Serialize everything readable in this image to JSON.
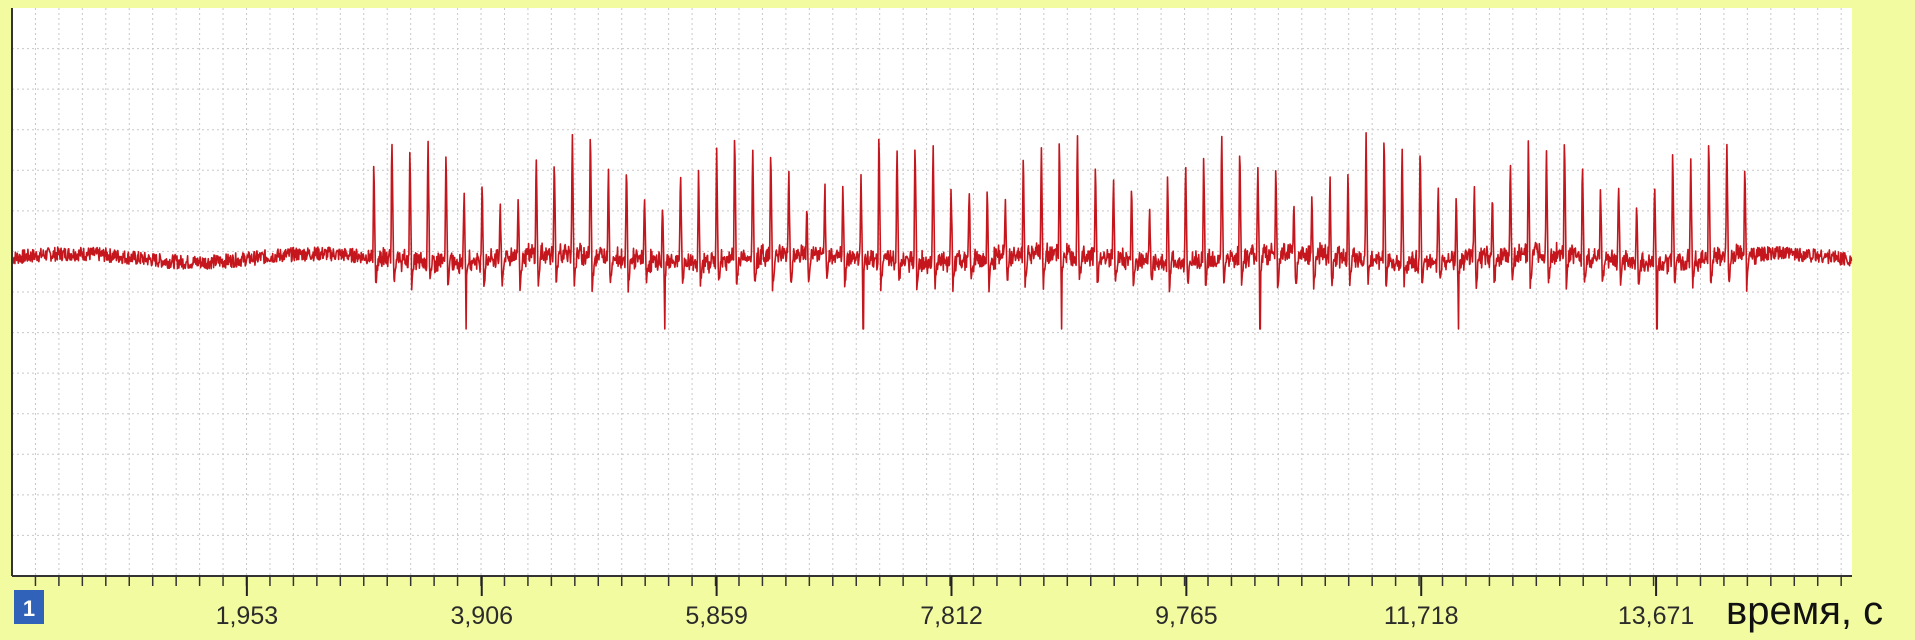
{
  "chart_data": {
    "type": "line",
    "title": "",
    "xlabel": "время, с",
    "ylabel": "",
    "xlim": [
      0,
      15.3
    ],
    "ylim": [
      -1,
      1
    ],
    "x_ticks": [
      "1,953",
      "3,906",
      "5,859",
      "7,812",
      "9,765",
      "11,718",
      "13,671"
    ],
    "x_tick_values": [
      1.953,
      3.906,
      5.859,
      7.812,
      9.765,
      11.718,
      13.671
    ],
    "grid": true,
    "channel_label": "1",
    "series": [
      {
        "color": "#c4161c",
        "description_of_shape": "flat noisy baseline from 0 to ~3 s, then repetitive sharp spikes (~0.15 s period) from ~3 s to ~14.5 s, then noisy baseline to end",
        "baseline": 0.12,
        "burst_start": 3.0,
        "burst_end": 14.5,
        "spike_period": 0.15,
        "spike_peak_max": 0.58,
        "spike_trough_min": -0.05
      }
    ]
  },
  "colors": {
    "page_background": "#f3fba0",
    "plot_background": "#ffffff",
    "grid": "#c8c8c8",
    "signal": "#c4161c",
    "badge": "#2f62b8"
  }
}
